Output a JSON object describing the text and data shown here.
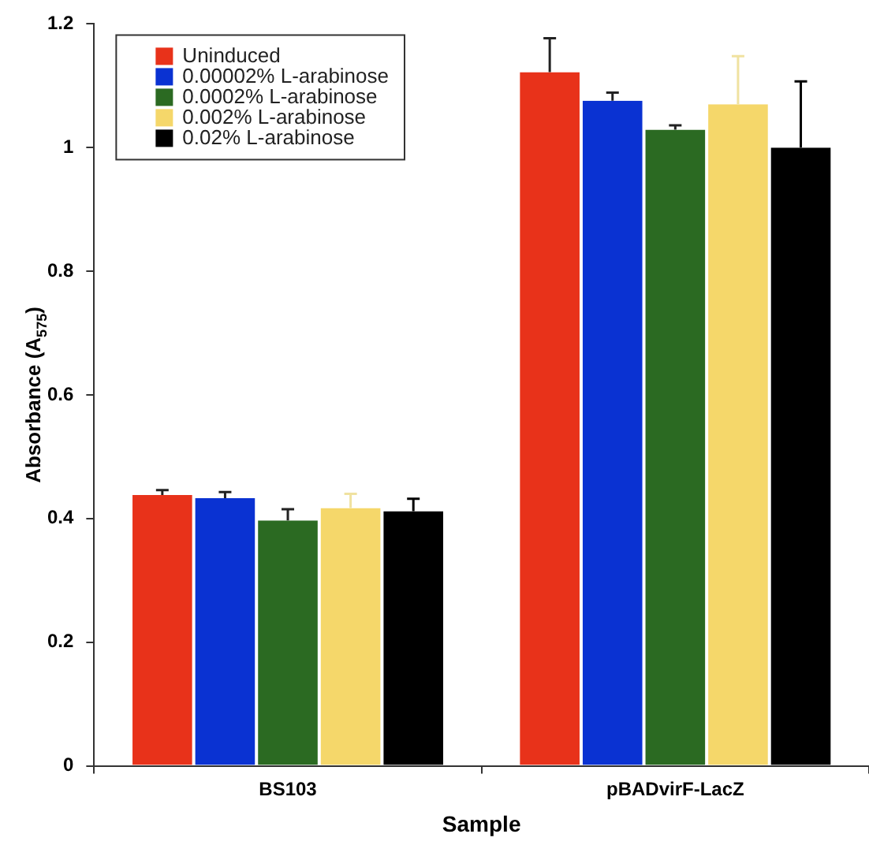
{
  "chart_data": {
    "type": "bar",
    "xlabel": "Sample",
    "ylabel": "Absorbance (A$_{575}$)",
    "categories": [
      "BS103",
      "pBADvirF-LacZ"
    ],
    "series": [
      {
        "name": "Uninduced",
        "color": "#e8321a",
        "values": [
          0.438,
          1.122
        ],
        "errors": [
          [
            0.438,
            0.446
          ],
          [
            1.122,
            1.177
          ]
        ]
      },
      {
        "name": "0.00002% L-arabinose",
        "color": "#0a32d2",
        "values": [
          0.433,
          1.076
        ],
        "errors": [
          [
            0.433,
            0.443
          ],
          [
            1.076,
            1.089
          ]
        ]
      },
      {
        "name": "0.0002% L-arabinose",
        "color": "#2b6a22",
        "values": [
          0.397,
          1.029
        ],
        "errors": [
          [
            0.397,
            0.415
          ],
          [
            1.029,
            1.036
          ]
        ]
      },
      {
        "name": "0.002% L-arabinose",
        "color": "#f5d76a",
        "values": [
          0.417,
          1.07
        ],
        "errors": [
          [
            0.417,
            0.44
          ],
          [
            1.07,
            1.148
          ]
        ]
      },
      {
        "name": "0.02% L-arabinose",
        "color": "#000000",
        "values": [
          0.412,
          1.0
        ],
        "errors": [
          [
            0.412,
            0.432
          ],
          [
            1.0,
            1.107
          ]
        ]
      }
    ],
    "ylim": [
      0,
      1.2
    ],
    "yticks": [
      0,
      0.2,
      0.4,
      0.6,
      0.8,
      1,
      1.2
    ],
    "grid": false,
    "legend": "top left"
  }
}
